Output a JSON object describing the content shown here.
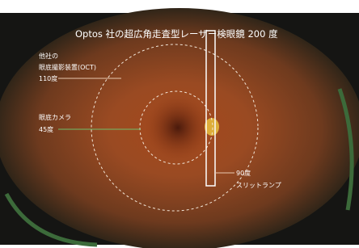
{
  "title": "Optos 社の超広角走査型レーザー検眼鏡 200 度",
  "annotations": [
    {
      "lines": [
        "他社の",
        "眼底撮影装置(OCT)",
        "110度"
      ]
    },
    {
      "lines": [
        "眼底カメラ",
        "45度"
      ]
    },
    {
      "lines": [
        "90度",
        "スリットランプ"
      ]
    }
  ]
}
